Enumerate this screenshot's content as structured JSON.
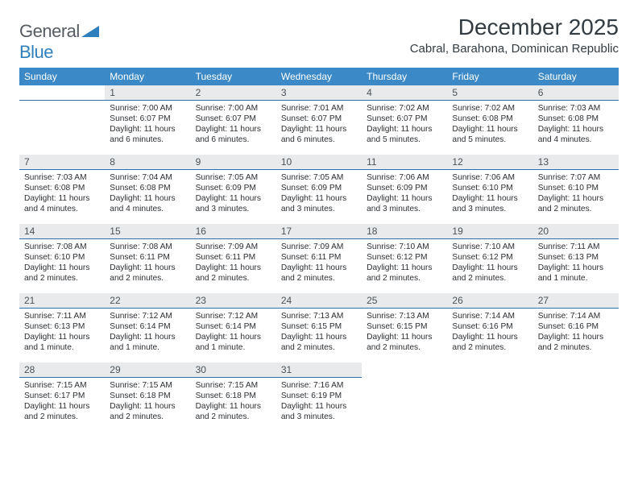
{
  "logo": {
    "word1": "General",
    "word2": "Blue"
  },
  "title": "December 2025",
  "location": "Cabral, Barahona, Dominican Republic",
  "colors": {
    "header_bg": "#3b89c7",
    "header_text": "#ffffff",
    "daybar_bg": "#e9eaeb",
    "daybar_border": "#2f6fa8",
    "text": "#2b2f33",
    "title_text": "#333b42",
    "logo_gray": "#555c63",
    "logo_blue": "#2f7fbc"
  },
  "weekdays": [
    "Sunday",
    "Monday",
    "Tuesday",
    "Wednesday",
    "Thursday",
    "Friday",
    "Saturday"
  ],
  "weeks": [
    [
      null,
      {
        "n": "1",
        "sr": "7:00 AM",
        "ss": "6:07 PM",
        "dl": "11 hours and 6 minutes."
      },
      {
        "n": "2",
        "sr": "7:00 AM",
        "ss": "6:07 PM",
        "dl": "11 hours and 6 minutes."
      },
      {
        "n": "3",
        "sr": "7:01 AM",
        "ss": "6:07 PM",
        "dl": "11 hours and 6 minutes."
      },
      {
        "n": "4",
        "sr": "7:02 AM",
        "ss": "6:07 PM",
        "dl": "11 hours and 5 minutes."
      },
      {
        "n": "5",
        "sr": "7:02 AM",
        "ss": "6:08 PM",
        "dl": "11 hours and 5 minutes."
      },
      {
        "n": "6",
        "sr": "7:03 AM",
        "ss": "6:08 PM",
        "dl": "11 hours and 4 minutes."
      }
    ],
    [
      {
        "n": "7",
        "sr": "7:03 AM",
        "ss": "6:08 PM",
        "dl": "11 hours and 4 minutes."
      },
      {
        "n": "8",
        "sr": "7:04 AM",
        "ss": "6:08 PM",
        "dl": "11 hours and 4 minutes."
      },
      {
        "n": "9",
        "sr": "7:05 AM",
        "ss": "6:09 PM",
        "dl": "11 hours and 3 minutes."
      },
      {
        "n": "10",
        "sr": "7:05 AM",
        "ss": "6:09 PM",
        "dl": "11 hours and 3 minutes."
      },
      {
        "n": "11",
        "sr": "7:06 AM",
        "ss": "6:09 PM",
        "dl": "11 hours and 3 minutes."
      },
      {
        "n": "12",
        "sr": "7:06 AM",
        "ss": "6:10 PM",
        "dl": "11 hours and 3 minutes."
      },
      {
        "n": "13",
        "sr": "7:07 AM",
        "ss": "6:10 PM",
        "dl": "11 hours and 2 minutes."
      }
    ],
    [
      {
        "n": "14",
        "sr": "7:08 AM",
        "ss": "6:10 PM",
        "dl": "11 hours and 2 minutes."
      },
      {
        "n": "15",
        "sr": "7:08 AM",
        "ss": "6:11 PM",
        "dl": "11 hours and 2 minutes."
      },
      {
        "n": "16",
        "sr": "7:09 AM",
        "ss": "6:11 PM",
        "dl": "11 hours and 2 minutes."
      },
      {
        "n": "17",
        "sr": "7:09 AM",
        "ss": "6:11 PM",
        "dl": "11 hours and 2 minutes."
      },
      {
        "n": "18",
        "sr": "7:10 AM",
        "ss": "6:12 PM",
        "dl": "11 hours and 2 minutes."
      },
      {
        "n": "19",
        "sr": "7:10 AM",
        "ss": "6:12 PM",
        "dl": "11 hours and 2 minutes."
      },
      {
        "n": "20",
        "sr": "7:11 AM",
        "ss": "6:13 PM",
        "dl": "11 hours and 1 minute."
      }
    ],
    [
      {
        "n": "21",
        "sr": "7:11 AM",
        "ss": "6:13 PM",
        "dl": "11 hours and 1 minute."
      },
      {
        "n": "22",
        "sr": "7:12 AM",
        "ss": "6:14 PM",
        "dl": "11 hours and 1 minute."
      },
      {
        "n": "23",
        "sr": "7:12 AM",
        "ss": "6:14 PM",
        "dl": "11 hours and 1 minute."
      },
      {
        "n": "24",
        "sr": "7:13 AM",
        "ss": "6:15 PM",
        "dl": "11 hours and 2 minutes."
      },
      {
        "n": "25",
        "sr": "7:13 AM",
        "ss": "6:15 PM",
        "dl": "11 hours and 2 minutes."
      },
      {
        "n": "26",
        "sr": "7:14 AM",
        "ss": "6:16 PM",
        "dl": "11 hours and 2 minutes."
      },
      {
        "n": "27",
        "sr": "7:14 AM",
        "ss": "6:16 PM",
        "dl": "11 hours and 2 minutes."
      }
    ],
    [
      {
        "n": "28",
        "sr": "7:15 AM",
        "ss": "6:17 PM",
        "dl": "11 hours and 2 minutes."
      },
      {
        "n": "29",
        "sr": "7:15 AM",
        "ss": "6:18 PM",
        "dl": "11 hours and 2 minutes."
      },
      {
        "n": "30",
        "sr": "7:15 AM",
        "ss": "6:18 PM",
        "dl": "11 hours and 2 minutes."
      },
      {
        "n": "31",
        "sr": "7:16 AM",
        "ss": "6:19 PM",
        "dl": "11 hours and 3 minutes."
      },
      null,
      null,
      null
    ]
  ],
  "labels": {
    "sunrise": "Sunrise:",
    "sunset": "Sunset:",
    "daylight": "Daylight:"
  }
}
